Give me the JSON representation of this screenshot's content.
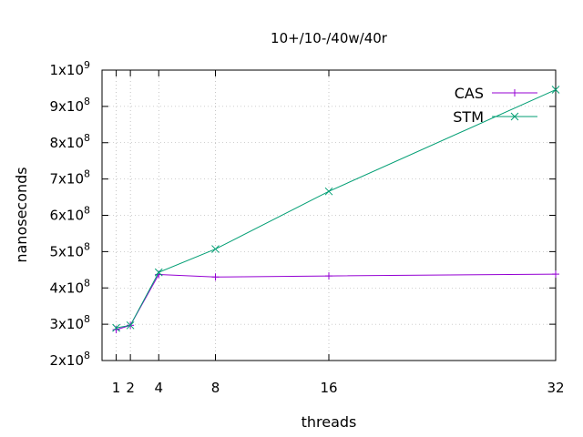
{
  "chart_data": {
    "type": "line",
    "title": "10+/10-/40w/40r",
    "xlabel": "threads",
    "ylabel": "nanoseconds",
    "x": [
      1,
      2,
      4,
      8,
      16,
      32
    ],
    "xlim": [
      0,
      32
    ],
    "ylim": [
      200000000,
      1000000000
    ],
    "x_ticks": [
      {
        "value": 1,
        "label": "1"
      },
      {
        "value": 2,
        "label": "2"
      },
      {
        "value": 4,
        "label": "4"
      },
      {
        "value": 8,
        "label": "8"
      },
      {
        "value": 16,
        "label": "16"
      },
      {
        "value": 32,
        "label": "32"
      }
    ],
    "y_ticks": [
      {
        "value": 200000000,
        "mantissa": "2x10",
        "exp": "8"
      },
      {
        "value": 300000000,
        "mantissa": "3x10",
        "exp": "8"
      },
      {
        "value": 400000000,
        "mantissa": "4x10",
        "exp": "8"
      },
      {
        "value": 500000000,
        "mantissa": "5x10",
        "exp": "8"
      },
      {
        "value": 600000000,
        "mantissa": "6x10",
        "exp": "8"
      },
      {
        "value": 700000000,
        "mantissa": "7x10",
        "exp": "8"
      },
      {
        "value": 800000000,
        "mantissa": "8x10",
        "exp": "8"
      },
      {
        "value": 900000000,
        "mantissa": "9x10",
        "exp": "8"
      },
      {
        "value": 1000000000,
        "mantissa": "1x10",
        "exp": "9"
      }
    ],
    "grid": true,
    "legend_position": "top-right",
    "series": [
      {
        "name": "CAS",
        "color": "#9400d3",
        "marker": "plus",
        "values": [
          285000000,
          297000000,
          437000000,
          430000000,
          433000000,
          438000000
        ]
      },
      {
        "name": "STM",
        "color": "#009e73",
        "marker": "cross",
        "values": [
          290000000,
          297000000,
          443000000,
          507000000,
          666000000,
          946000000
        ]
      }
    ]
  }
}
